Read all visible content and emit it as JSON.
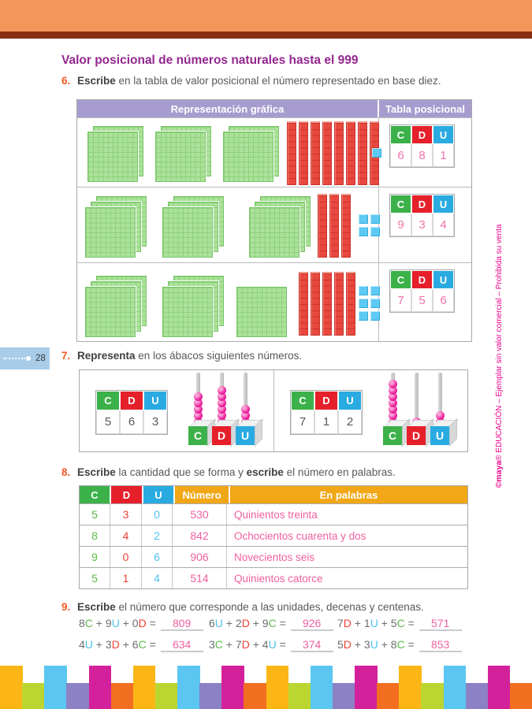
{
  "page": {
    "title": "Valor posicional de números naturales hasta el 999",
    "page_number": "28",
    "side_text_bold": "©maya",
    "side_text_rest": "® EDUCACIÓN – Ejemplar sin valor comercial – Prohibida su venta"
  },
  "colors": {
    "top_band": "#F3965B",
    "top_bar": "#872D10",
    "title": "#93278F",
    "exercise_number": "#F15A24",
    "purple_header": "#A79CCF",
    "green_c": "#3CB14A",
    "red_d": "#E5202B",
    "blue_u": "#29ABE2",
    "gold_header": "#F2A716",
    "pink_value": "#F172AC",
    "magenta_side": "#EC008C",
    "tab_blue": "#A9CDE9"
  },
  "cdu": [
    "C",
    "D",
    "U"
  ],
  "ex6": {
    "num": "6.",
    "bold": "Escribe",
    "rest": " en la tabla de valor posicional el número representado en base diez.",
    "header_left": "Representación gráfica",
    "header_right": "Tabla posicional",
    "rows": [
      {
        "hundreds": [
          2,
          2,
          2
        ],
        "tens": 8,
        "units": 1,
        "units_cols": 1,
        "values": [
          "6",
          "8",
          "1"
        ]
      },
      {
        "hundreds": [
          3,
          3,
          3
        ],
        "tens": 3,
        "units": 4,
        "units_cols": 2,
        "values": [
          "9",
          "3",
          "4"
        ]
      },
      {
        "hundreds": [
          3,
          3,
          1
        ],
        "tens": 5,
        "units": 6,
        "units_cols": 2,
        "values": [
          "7",
          "5",
          "6"
        ]
      }
    ]
  },
  "ex7": {
    "num": "7.",
    "bold": "Representa",
    "rest": " en los ábacos siguientes números.",
    "abacuses": [
      {
        "values": [
          "5",
          "6",
          "3"
        ],
        "beads": [
          5,
          6,
          3
        ]
      },
      {
        "values": [
          "7",
          "1",
          "2"
        ],
        "beads": [
          7,
          1,
          2
        ]
      }
    ]
  },
  "ex8": {
    "num": "8.",
    "bold": "Escribe",
    "rest1": " la cantidad que se forma y ",
    "bold2": "escribe",
    "rest2": " el número en palabras.",
    "headers": [
      "C",
      "D",
      "U",
      "Número",
      "En palabras"
    ],
    "rows": [
      {
        "c": "5",
        "d": "3",
        "u": "0",
        "numero": "530",
        "palabras": "Quinientos treinta"
      },
      {
        "c": "8",
        "d": "4",
        "u": "2",
        "numero": "842",
        "palabras": "Ochocientos cuarenta y dos"
      },
      {
        "c": "9",
        "d": "0",
        "u": "6",
        "numero": "906",
        "palabras": "Novecientos seis"
      },
      {
        "c": "5",
        "d": "1",
        "u": "4",
        "numero": "514",
        "palabras": "Quinientos catorce"
      }
    ]
  },
  "ex9": {
    "num": "9.",
    "bold": "Escribe",
    "rest": " el número que corresponde a las unidades, decenas y centenas.",
    "equations": [
      {
        "terms": [
          [
            "8",
            "C"
          ],
          [
            "9",
            "U"
          ],
          [
            "0",
            "D"
          ]
        ],
        "answer": "809"
      },
      {
        "terms": [
          [
            "6",
            "U"
          ],
          [
            "2",
            "D"
          ],
          [
            "9",
            "C"
          ]
        ],
        "answer": "926"
      },
      {
        "terms": [
          [
            "7",
            "D"
          ],
          [
            "1",
            "U"
          ],
          [
            "5",
            "C"
          ]
        ],
        "answer": "571"
      },
      {
        "terms": [
          [
            "4",
            "U"
          ],
          [
            "3",
            "D"
          ],
          [
            "6",
            "C"
          ]
        ],
        "answer": "634"
      },
      {
        "terms": [
          [
            "3",
            "C"
          ],
          [
            "7",
            "D"
          ],
          [
            "4",
            "U"
          ]
        ],
        "answer": "374"
      },
      {
        "terms": [
          [
            "5",
            "D"
          ],
          [
            "3",
            "U"
          ],
          [
            "8",
            "C"
          ]
        ],
        "answer": "853"
      }
    ]
  },
  "band_colors": [
    "#FBB616",
    "#BCD631",
    "#5BC6F2",
    "#8C81C4",
    "#D3219B",
    "#F26F21"
  ]
}
